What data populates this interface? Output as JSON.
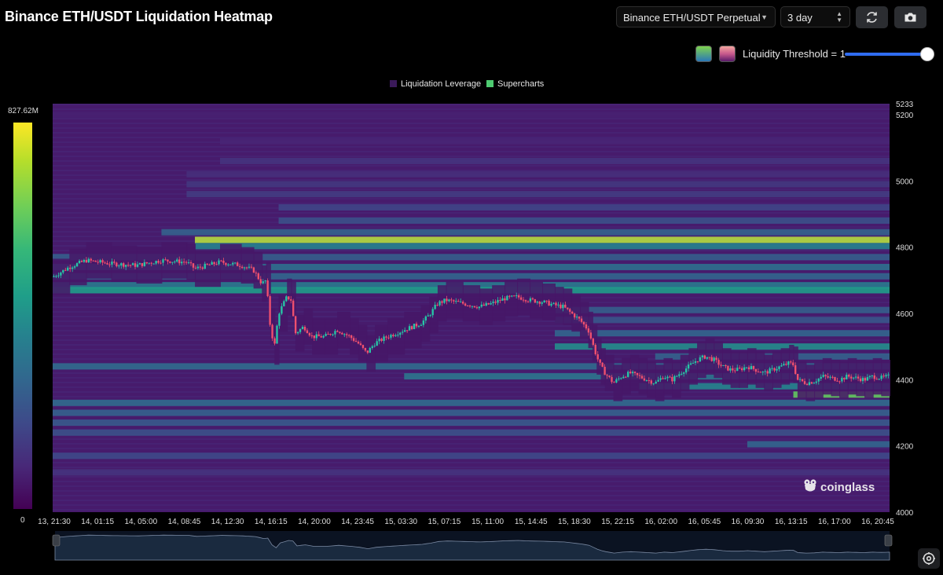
{
  "header": {
    "title": "Binance ETH/USDT Liquidation Heatmap",
    "pair_select": "Binance ETH/USDT Perpetual",
    "range_select": "3 day",
    "refresh_icon": "refresh-icon",
    "camera_icon": "camera-icon"
  },
  "controls": {
    "threshold_label": "Liquidity Threshold = 1",
    "threshold_value": 1,
    "palette_viridis_colors": [
      "#3bd16f",
      "#2a7fbf"
    ],
    "palette_magma_colors": [
      "#f28a8a",
      "#5a1a6a"
    ]
  },
  "colors": {
    "heat_low": "#440154",
    "heat_high": "#fde725",
    "candle_up": "#26c6a6",
    "candle_down": "#f0506e",
    "navigator": "#1a2a3f"
  },
  "brand": {
    "name": "coinglass"
  },
  "chart_data": {
    "type": "heatmap",
    "title": "Binance ETH/USDT Liquidation Heatmap",
    "legend": [
      "Liquidation Leverage",
      "Supercharts"
    ],
    "legend_colors": [
      "#3b1a5a",
      "#4ecb71"
    ],
    "colorbar": {
      "max_label": "827.62M",
      "min_label": "0"
    },
    "y_range": [
      4000,
      5233
    ],
    "y_top_label": "5233",
    "y_ticks": [
      5200,
      5000,
      4800,
      4600,
      4400,
      4200,
      4000
    ],
    "x_labels": [
      "13, 21:30",
      "14, 01:15",
      "14, 05:00",
      "14, 08:45",
      "14, 12:30",
      "14, 16:15",
      "14, 20:00",
      "14, 23:45",
      "15, 03:30",
      "15, 07:15",
      "15, 11:00",
      "15, 14:45",
      "15, 18:30",
      "15, 22:15",
      "16, 02:00",
      "16, 05:45",
      "16, 09:30",
      "16, 13:15",
      "16, 17:00",
      "16, 20:45"
    ],
    "heat_bands": [
      {
        "price": 5200,
        "intensity": 0.12,
        "from": 0.0
      },
      {
        "price": 5120,
        "intensity": 0.14,
        "from": 0.2
      },
      {
        "price": 5060,
        "intensity": 0.2,
        "from": 0.2
      },
      {
        "price": 5020,
        "intensity": 0.18,
        "from": 0.16
      },
      {
        "price": 4990,
        "intensity": 0.22,
        "from": 0.16
      },
      {
        "price": 4960,
        "intensity": 0.24,
        "from": 0.16
      },
      {
        "price": 4920,
        "intensity": 0.28,
        "from": 0.27
      },
      {
        "price": 4880,
        "intensity": 0.34,
        "from": 0.27
      },
      {
        "price": 4845,
        "intensity": 0.42,
        "from": 0.13
      },
      {
        "price": 4822,
        "intensity": 0.95,
        "from": 0.17
      },
      {
        "price": 4803,
        "intensity": 0.55,
        "from": 0.17
      },
      {
        "price": 4770,
        "intensity": 0.4,
        "from": 0.0
      },
      {
        "price": 4740,
        "intensity": 0.48,
        "from": 0.0
      },
      {
        "price": 4712,
        "intensity": 0.44,
        "from": 0.0
      },
      {
        "price": 4685,
        "intensity": 0.52,
        "from": 0.0
      },
      {
        "price": 4670,
        "intensity": 0.68,
        "from": 0.0
      },
      {
        "price": 4610,
        "intensity": 0.4,
        "from": 0.6
      },
      {
        "price": 4580,
        "intensity": 0.36,
        "from": 0.6
      },
      {
        "price": 4540,
        "intensity": 0.44,
        "from": 0.6
      },
      {
        "price": 4500,
        "intensity": 0.6,
        "from": 0.6
      },
      {
        "price": 4470,
        "intensity": 0.42,
        "from": 0.72
      },
      {
        "price": 4440,
        "intensity": 0.46,
        "from": 0.0
      },
      {
        "price": 4410,
        "intensity": 0.5,
        "from": 0.42
      },
      {
        "price": 4380,
        "intensity": 0.56,
        "from": 0.7
      },
      {
        "price": 4355,
        "intensity": 0.88,
        "from": 0.885
      },
      {
        "price": 4330,
        "intensity": 0.46,
        "from": 0.0
      },
      {
        "price": 4300,
        "intensity": 0.42,
        "from": 0.0
      },
      {
        "price": 4270,
        "intensity": 0.38,
        "from": 0.0
      },
      {
        "price": 4240,
        "intensity": 0.34,
        "from": 0.0
      },
      {
        "price": 4205,
        "intensity": 0.44,
        "from": 0.83
      },
      {
        "price": 4170,
        "intensity": 0.3,
        "from": 0.0
      },
      {
        "price": 4120,
        "intensity": 0.2,
        "from": 0.0
      }
    ],
    "price_path": [
      [
        0.0,
        4710
      ],
      [
        0.02,
        4740
      ],
      [
        0.04,
        4760
      ],
      [
        0.07,
        4750
      ],
      [
        0.1,
        4745
      ],
      [
        0.13,
        4760
      ],
      [
        0.16,
        4755
      ],
      [
        0.17,
        4735
      ],
      [
        0.2,
        4755
      ],
      [
        0.225,
        4745
      ],
      [
        0.24,
        4730
      ],
      [
        0.25,
        4690
      ],
      [
        0.255,
        4700
      ],
      [
        0.26,
        4560
      ],
      [
        0.265,
        4500
      ],
      [
        0.27,
        4600
      ],
      [
        0.28,
        4650
      ],
      [
        0.285,
        4640
      ],
      [
        0.29,
        4540
      ],
      [
        0.3,
        4560
      ],
      [
        0.31,
        4530
      ],
      [
        0.325,
        4530
      ],
      [
        0.34,
        4550
      ],
      [
        0.355,
        4530
      ],
      [
        0.365,
        4510
      ],
      [
        0.375,
        4480
      ],
      [
        0.385,
        4510
      ],
      [
        0.4,
        4530
      ],
      [
        0.42,
        4550
      ],
      [
        0.44,
        4570
      ],
      [
        0.45,
        4595
      ],
      [
        0.46,
        4630
      ],
      [
        0.47,
        4640
      ],
      [
        0.49,
        4630
      ],
      [
        0.51,
        4620
      ],
      [
        0.525,
        4630
      ],
      [
        0.54,
        4645
      ],
      [
        0.555,
        4650
      ],
      [
        0.57,
        4640
      ],
      [
        0.585,
        4635
      ],
      [
        0.6,
        4625
      ],
      [
        0.61,
        4620
      ],
      [
        0.62,
        4600
      ],
      [
        0.63,
        4580
      ],
      [
        0.64,
        4550
      ],
      [
        0.645,
        4510
      ],
      [
        0.65,
        4470
      ],
      [
        0.655,
        4440
      ],
      [
        0.66,
        4420
      ],
      [
        0.67,
        4390
      ],
      [
        0.68,
        4410
      ],
      [
        0.69,
        4420
      ],
      [
        0.7,
        4410
      ],
      [
        0.71,
        4400
      ],
      [
        0.72,
        4390
      ],
      [
        0.73,
        4410
      ],
      [
        0.74,
        4400
      ],
      [
        0.75,
        4420
      ],
      [
        0.76,
        4440
      ],
      [
        0.77,
        4460
      ],
      [
        0.78,
        4470
      ],
      [
        0.79,
        4460
      ],
      [
        0.8,
        4440
      ],
      [
        0.81,
        4430
      ],
      [
        0.82,
        4430
      ],
      [
        0.83,
        4440
      ],
      [
        0.84,
        4430
      ],
      [
        0.85,
        4420
      ],
      [
        0.86,
        4430
      ],
      [
        0.87,
        4440
      ],
      [
        0.88,
        4450
      ],
      [
        0.885,
        4445
      ],
      [
        0.89,
        4400
      ],
      [
        0.9,
        4390
      ],
      [
        0.91,
        4395
      ],
      [
        0.92,
        4410
      ],
      [
        0.93,
        4405
      ],
      [
        0.94,
        4400
      ],
      [
        0.95,
        4410
      ],
      [
        0.96,
        4405
      ],
      [
        0.97,
        4400
      ],
      [
        0.98,
        4410
      ],
      [
        0.99,
        4405
      ],
      [
        1.0,
        4410
      ]
    ]
  }
}
